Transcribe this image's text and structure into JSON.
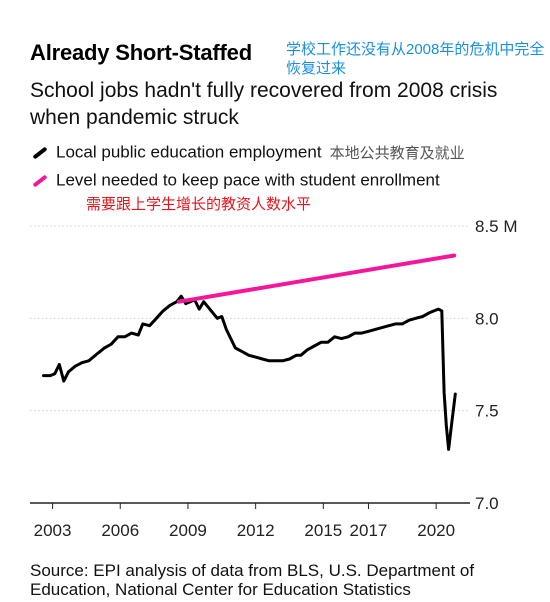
{
  "header": {
    "title": "Already Short-Staffed",
    "cn_note": "学校工作还没有从2008年的危机中完全恢复过来",
    "subtitle": "School jobs hadn't fully recovered from 2008 crisis when pandemic struck"
  },
  "legend": [
    {
      "label": "Local public education employment",
      "cn": "本地公共教育及就业",
      "color": "#000000"
    },
    {
      "label": "Level needed to keep pace with student enrollment",
      "cn": "需要跟上学生增长的教资人数水平",
      "color": "#f5169c"
    }
  ],
  "source": "Source: EPI analysis of data from BLS, U.S. Department of Education, National Center for Education Statistics",
  "chart_data": {
    "type": "line",
    "x_ticks": [
      "2003",
      "2006",
      "2009",
      "2012",
      "2015",
      "2017",
      "2020"
    ],
    "y_ticks": [
      "7.0",
      "7.5",
      "8.0",
      "8.5 M"
    ],
    "ylim": [
      7.0,
      8.5
    ],
    "xlim": [
      2002,
      2021.5
    ],
    "grid": true,
    "series": [
      {
        "name": "Local public education employment",
        "color": "#000000",
        "points": [
          [
            2002.6,
            7.69
          ],
          [
            2002.9,
            7.69
          ],
          [
            2003.1,
            7.7
          ],
          [
            2003.3,
            7.75
          ],
          [
            2003.5,
            7.66
          ],
          [
            2003.7,
            7.71
          ],
          [
            2004.0,
            7.74
          ],
          [
            2004.3,
            7.76
          ],
          [
            2004.6,
            7.77
          ],
          [
            2005.0,
            7.81
          ],
          [
            2005.3,
            7.84
          ],
          [
            2005.6,
            7.86
          ],
          [
            2005.9,
            7.9
          ],
          [
            2006.2,
            7.9
          ],
          [
            2006.5,
            7.92
          ],
          [
            2006.8,
            7.91
          ],
          [
            2007.0,
            7.97
          ],
          [
            2007.3,
            7.96
          ],
          [
            2007.6,
            8.0
          ],
          [
            2007.9,
            8.04
          ],
          [
            2008.2,
            8.07
          ],
          [
            2008.5,
            8.09
          ],
          [
            2008.7,
            8.12
          ],
          [
            2008.9,
            8.08
          ],
          [
            2009.1,
            8.09
          ],
          [
            2009.3,
            8.1
          ],
          [
            2009.5,
            8.05
          ],
          [
            2009.7,
            8.09
          ],
          [
            2009.9,
            8.06
          ],
          [
            2010.1,
            8.03
          ],
          [
            2010.3,
            8.0
          ],
          [
            2010.5,
            8.01
          ],
          [
            2010.7,
            7.94
          ],
          [
            2010.9,
            7.89
          ],
          [
            2011.1,
            7.84
          ],
          [
            2011.4,
            7.82
          ],
          [
            2011.7,
            7.8
          ],
          [
            2012.0,
            7.79
          ],
          [
            2012.3,
            7.78
          ],
          [
            2012.6,
            7.77
          ],
          [
            2012.9,
            7.77
          ],
          [
            2013.2,
            7.77
          ],
          [
            2013.5,
            7.78
          ],
          [
            2013.8,
            7.8
          ],
          [
            2014.0,
            7.8
          ],
          [
            2014.3,
            7.83
          ],
          [
            2014.6,
            7.85
          ],
          [
            2014.9,
            7.87
          ],
          [
            2015.2,
            7.87
          ],
          [
            2015.5,
            7.9
          ],
          [
            2015.8,
            7.89
          ],
          [
            2016.1,
            7.9
          ],
          [
            2016.4,
            7.92
          ],
          [
            2016.7,
            7.92
          ],
          [
            2017.0,
            7.93
          ],
          [
            2017.3,
            7.94
          ],
          [
            2017.6,
            7.95
          ],
          [
            2017.9,
            7.96
          ],
          [
            2018.2,
            7.97
          ],
          [
            2018.5,
            7.97
          ],
          [
            2018.8,
            7.99
          ],
          [
            2019.1,
            8.0
          ],
          [
            2019.4,
            8.01
          ],
          [
            2019.7,
            8.03
          ],
          [
            2019.9,
            8.04
          ],
          [
            2020.1,
            8.05
          ],
          [
            2020.25,
            8.04
          ],
          [
            2020.35,
            7.6
          ],
          [
            2020.45,
            7.42
          ],
          [
            2020.55,
            7.29
          ],
          [
            2020.7,
            7.44
          ],
          [
            2020.85,
            7.59
          ]
        ]
      },
      {
        "name": "Level needed to keep pace with student enrollment",
        "color": "#f5169c",
        "points": [
          [
            2008.6,
            8.09
          ],
          [
            2020.8,
            8.34
          ]
        ]
      }
    ]
  }
}
